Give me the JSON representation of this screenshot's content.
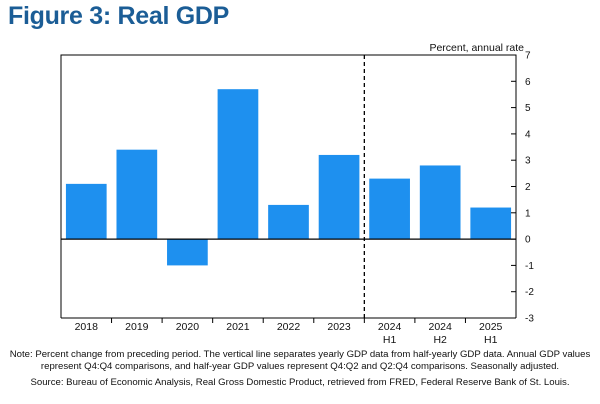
{
  "figure": {
    "title": "Figure 3: Real GDP",
    "note": "Note: Percent change from preceding period. The vertical line separates yearly GDP data from half-yearly GDP data. Annual GDP values represent Q4:Q4 comparisons, and half-year GDP values represent Q4:Q2 and Q2:Q4 comparisons. Seasonally adjusted.",
    "source": "Source: Bureau of Economic Analysis, Real Gross Domestic Product, retrieved from FRED, Federal Reserve Bank of St. Louis."
  },
  "colors": {
    "bar": "#1e90ef",
    "title": "#1b5d96",
    "axis": "#000000"
  },
  "chart_data": {
    "type": "bar",
    "title": "",
    "ylabel": "Percent, annual rate",
    "ylabel_position": "top-right",
    "ylim": [
      -3,
      7
    ],
    "yticks": [
      -3,
      -2,
      -1,
      0,
      1,
      2,
      3,
      4,
      5,
      6,
      7
    ],
    "categories": [
      {
        "line1": "2018",
        "line2": ""
      },
      {
        "line1": "2019",
        "line2": ""
      },
      {
        "line1": "2020",
        "line2": ""
      },
      {
        "line1": "2021",
        "line2": ""
      },
      {
        "line1": "2022",
        "line2": ""
      },
      {
        "line1": "2023",
        "line2": ""
      },
      {
        "line1": "2024",
        "line2": "H1"
      },
      {
        "line1": "2024",
        "line2": "H2"
      },
      {
        "line1": "2025",
        "line2": "H1"
      }
    ],
    "values": [
      2.1,
      3.4,
      -1.0,
      5.7,
      1.3,
      3.2,
      2.3,
      2.8,
      1.2
    ],
    "separator_after_index": 5,
    "grid": false
  }
}
